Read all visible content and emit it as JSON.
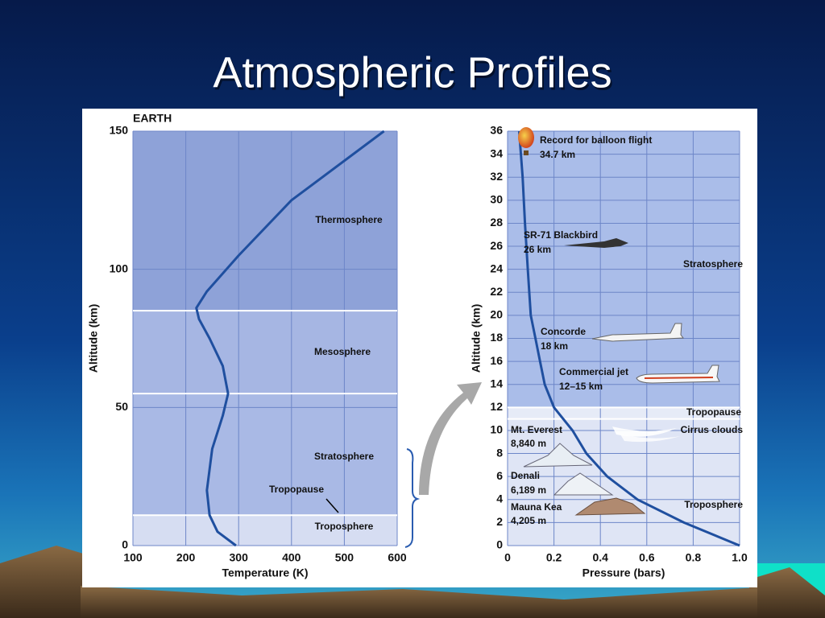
{
  "slide_title": "Atmospheric Profiles",
  "chart_data": [
    {
      "type": "line",
      "title": "EARTH",
      "xlabel": "Temperature (K)",
      "ylabel": "Altitude (km)",
      "x": [
        295,
        260,
        245,
        240,
        250,
        270,
        280,
        270,
        245,
        225,
        220,
        240,
        300,
        400,
        575
      ],
      "values": [
        0,
        5,
        11,
        20,
        35,
        47,
        55,
        65,
        75,
        82,
        86,
        92,
        105,
        125,
        150
      ],
      "color": "#1f4f9f",
      "xlim": [
        100,
        600
      ],
      "xticks": [
        100,
        200,
        300,
        400,
        500,
        600
      ],
      "ylim": [
        0,
        150
      ],
      "yticks": [
        0,
        50,
        100,
        150
      ],
      "hlines": [
        11,
        55,
        85
      ],
      "band_colors": [
        "#d6ddf2",
        "#a9b9e5",
        "#a6b6e3",
        "#8ea2d8"
      ],
      "grid": true,
      "annotations": [
        "Thermosphere",
        "Mesosphere",
        "Stratosphere",
        "Tropopause",
        "Troposphere"
      ]
    },
    {
      "type": "line",
      "xlabel": "Pressure (bars)",
      "ylabel": "Altitude (km)",
      "x": [
        1.0,
        0.76,
        0.56,
        0.43,
        0.34,
        0.28,
        0.2,
        0.16,
        0.14,
        0.12,
        0.1,
        0.087,
        0.075,
        0.065,
        0.05
      ],
      "values": [
        0,
        2,
        4,
        6,
        8,
        10,
        12,
        14,
        16,
        18,
        20,
        24,
        28,
        32,
        36
      ],
      "color": "#1f4f9f",
      "xlim": [
        0,
        1.0
      ],
      "xticks": [
        0,
        0.2,
        0.4,
        0.6,
        0.8,
        {
          "value": 1.0,
          "label": "1.0"
        }
      ],
      "ylim": [
        0,
        36
      ],
      "yticks": [
        0,
        2,
        4,
        6,
        8,
        10,
        12,
        14,
        16,
        18,
        20,
        22,
        24,
        26,
        28,
        30,
        32,
        34,
        36
      ],
      "hlines": [
        11,
        12
      ],
      "band_colors": [
        "#dfe5f5",
        "#e6ebf7",
        "#aabde9"
      ],
      "grid": true,
      "annotations": [
        "Record for balloon flight",
        "34.7 km",
        "SR-71 Blackbird",
        "26 km",
        "Concorde",
        "18 km",
        "Commercial jet",
        "12–15 km",
        "Tropopause",
        "Cirrus clouds",
        "Stratosphere",
        "Mt. Everest",
        "8,840 m",
        "Denali",
        "6,189 m",
        "Mauna Kea",
        "4,205 m",
        "Troposphere"
      ]
    }
  ]
}
